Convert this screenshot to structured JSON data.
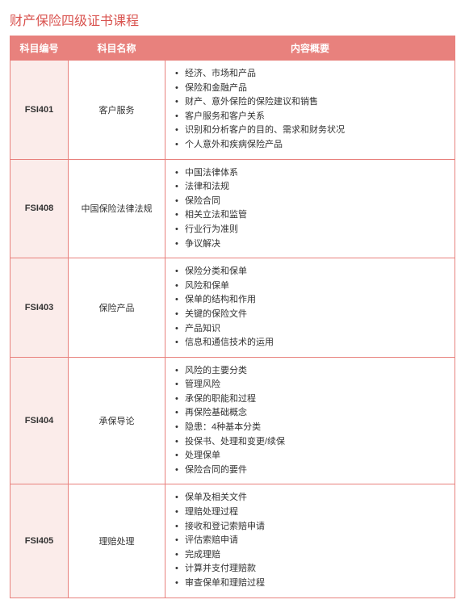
{
  "title": "财产保险四级证书课程",
  "columns": [
    "科目编号",
    "科目名称",
    "内容概要"
  ],
  "rows": [
    {
      "code": "FSI401",
      "name": "客户服务",
      "items": [
        "经济、市场和产品",
        "保险和金融产品",
        "财产、意外保险的保险建议和销售",
        "客户服务和客户关系",
        "识别和分析客户的目的、需求和财务状况",
        "个人意外和疾病保险产品"
      ]
    },
    {
      "code": "FSI408",
      "name": "中国保险法律法规",
      "items": [
        "中国法律体系",
        "法律和法规",
        "保险合同",
        "相关立法和监管",
        "行业行为准则",
        "争议解决"
      ]
    },
    {
      "code": "FSI403",
      "name": "保险产品",
      "items": [
        "保险分类和保单",
        "风险和保单",
        "保单的结构和作用",
        "关键的保险文件",
        "产品知识",
        "信息和通信技术的运用"
      ]
    },
    {
      "code": "FSI404",
      "name": "承保导论",
      "items": [
        "风险的主要分类",
        "管理风险",
        "承保的职能和过程",
        "再保险基础概念",
        "隐患：4种基本分类",
        "投保书、处理和变更/续保",
        "处理保单",
        "保险合同的要件"
      ]
    },
    {
      "code": "FSI405",
      "name": "理赔处理",
      "items": [
        "保单及相关文件",
        "理赔处理过程",
        "接收和登记索赔申请",
        "评估索赔申请",
        "完成理赔",
        "计算并支付理赔款",
        "审查保单和理赔过程"
      ]
    }
  ],
  "styling": {
    "title_color": "#d9534f",
    "header_bg": "#e8817d",
    "header_text": "#ffffff",
    "code_bg": "#fbecea",
    "border_color": "#e8817d",
    "text_color": "#333333"
  }
}
